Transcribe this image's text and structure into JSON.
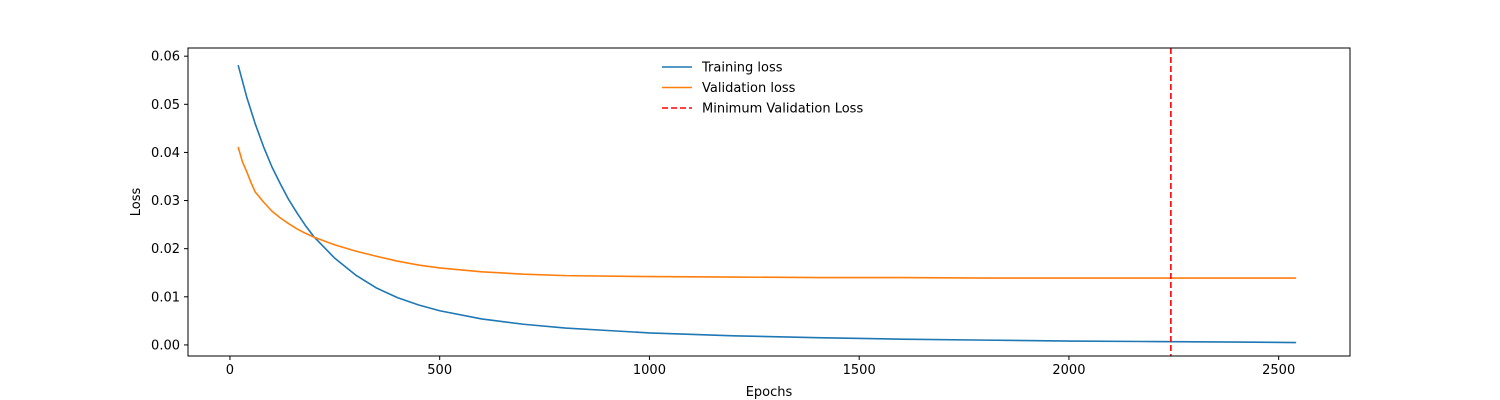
{
  "chart_data": {
    "type": "line",
    "title": "",
    "xlabel": "Epochs",
    "ylabel": "Loss",
    "xlim": [
      -100,
      2670
    ],
    "ylim": [
      -0.0023,
      0.0617
    ],
    "xticks": [
      0,
      500,
      1000,
      1500,
      2000,
      2500
    ],
    "xtick_labels": [
      "0",
      "500",
      "1000",
      "1500",
      "2000",
      "2500"
    ],
    "yticks": [
      0.0,
      0.01,
      0.02,
      0.03,
      0.04,
      0.05,
      0.06
    ],
    "ytick_labels": [
      "0.00",
      "0.01",
      "0.02",
      "0.03",
      "0.04",
      "0.05",
      "0.06"
    ],
    "grid": false,
    "legend_position": "upper center",
    "series": [
      {
        "name": "Training loss",
        "color": "#1f77b4",
        "style": "solid",
        "x": [
          20,
          40,
          60,
          80,
          100,
          120,
          140,
          160,
          180,
          200,
          250,
          300,
          350,
          400,
          450,
          500,
          600,
          700,
          800,
          900,
          1000,
          1200,
          1400,
          1600,
          1800,
          2000,
          2200,
          2400,
          2540
        ],
        "y": [
          0.058,
          0.0515,
          0.046,
          0.0412,
          0.037,
          0.0335,
          0.0302,
          0.0274,
          0.0248,
          0.0225,
          0.018,
          0.0145,
          0.0118,
          0.0098,
          0.0083,
          0.0071,
          0.0054,
          0.0043,
          0.0035,
          0.003,
          0.0025,
          0.0019,
          0.0015,
          0.0012,
          0.001,
          0.0008,
          0.0007,
          0.0006,
          0.0005
        ]
      },
      {
        "name": "Validation loss",
        "color": "#ff7f0e",
        "style": "solid",
        "x": [
          20,
          30,
          40,
          50,
          60,
          80,
          100,
          120,
          140,
          160,
          180,
          200,
          250,
          300,
          350,
          400,
          450,
          500,
          600,
          700,
          800,
          1000,
          1200,
          1400,
          1600,
          1800,
          2000,
          2200,
          2400,
          2540
        ],
        "y": [
          0.041,
          0.038,
          0.036,
          0.0338,
          0.0318,
          0.0297,
          0.0278,
          0.0264,
          0.0252,
          0.0241,
          0.0232,
          0.0224,
          0.0208,
          0.0195,
          0.0184,
          0.0174,
          0.0166,
          0.016,
          0.0152,
          0.0147,
          0.0144,
          0.0142,
          0.0141,
          0.014,
          0.014,
          0.0139,
          0.0139,
          0.0139,
          0.0139,
          0.0139
        ]
      }
    ],
    "vlines": [
      {
        "name": "Minimum Validation Loss",
        "x": 2243,
        "color": "#ff0000",
        "style": "dashed"
      }
    ]
  }
}
